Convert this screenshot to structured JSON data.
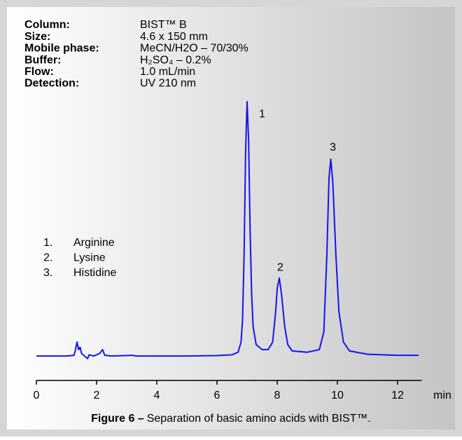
{
  "chart_data": {
    "type": "line",
    "info": [
      {
        "label": "Column:",
        "value": "BIST™ B"
      },
      {
        "label": "Size:",
        "value": "4.6 x 150 mm"
      },
      {
        "label": "Mobile phase:",
        "value": "MeCN/H2O – 70/30%"
      },
      {
        "label": "Buffer:",
        "value": "H₂SO₄ – 0.2%"
      },
      {
        "label": "Flow:",
        "value": "1.0 mL/min"
      },
      {
        "label": "Detection:",
        "value": "UV 210 nm"
      }
    ],
    "peaks_legend": [
      {
        "number": "1.",
        "name": "Arginine"
      },
      {
        "number": "2.",
        "name": "Lysine"
      },
      {
        "number": "3.",
        "name": "Histidine"
      }
    ],
    "annotations": [
      {
        "text": "1",
        "x": 7.5,
        "y": 95
      },
      {
        "text": "2",
        "x": 8.1,
        "y": 35
      },
      {
        "text": "3",
        "x": 9.85,
        "y": 82
      }
    ],
    "x_unit": "min",
    "caption_bold": "Figure 6 –",
    "caption": "Separation of basic amino acids  with BIST™.",
    "series": [
      {
        "name": null,
        "color": "#1414f0",
        "x": [
          0,
          1.0,
          1.25,
          1.3,
          1.35,
          1.4,
          1.45,
          1.5,
          1.6,
          1.7,
          1.75,
          1.9,
          2.0,
          2.1,
          2.2,
          2.27,
          2.5,
          3.2,
          3.3,
          5.0,
          6.0,
          6.5,
          6.7,
          6.8,
          6.85,
          6.9,
          6.95,
          7.0,
          7.05,
          7.1,
          7.15,
          7.2,
          7.3,
          7.5,
          7.7,
          7.85,
          7.95,
          8.0,
          8.07,
          8.15,
          8.25,
          8.35,
          8.5,
          9.0,
          9.4,
          9.55,
          9.65,
          9.72,
          9.78,
          9.85,
          9.95,
          10.05,
          10.2,
          10.4,
          11,
          12,
          12.7
        ],
        "values": [
          0.5,
          0.5,
          0.8,
          3,
          6,
          3,
          4,
          1.5,
          0.5,
          -0.5,
          1,
          0.5,
          1,
          1.5,
          3,
          0.8,
          0.5,
          0.8,
          0.5,
          0.5,
          0.7,
          1.0,
          2,
          6,
          15,
          40,
          80,
          100,
          85,
          50,
          25,
          12,
          5,
          3,
          3,
          6,
          18,
          27,
          31,
          24,
          12,
          5,
          2.5,
          2,
          3,
          10,
          40,
          70,
          77.5,
          68,
          40,
          18,
          6,
          2.5,
          1.2,
          0.8,
          0.8
        ]
      }
    ],
    "xlim": [
      0,
      12.8
    ],
    "xticks": [
      0,
      2,
      4,
      6,
      8,
      10,
      12
    ],
    "ylim": [
      0,
      100
    ]
  }
}
